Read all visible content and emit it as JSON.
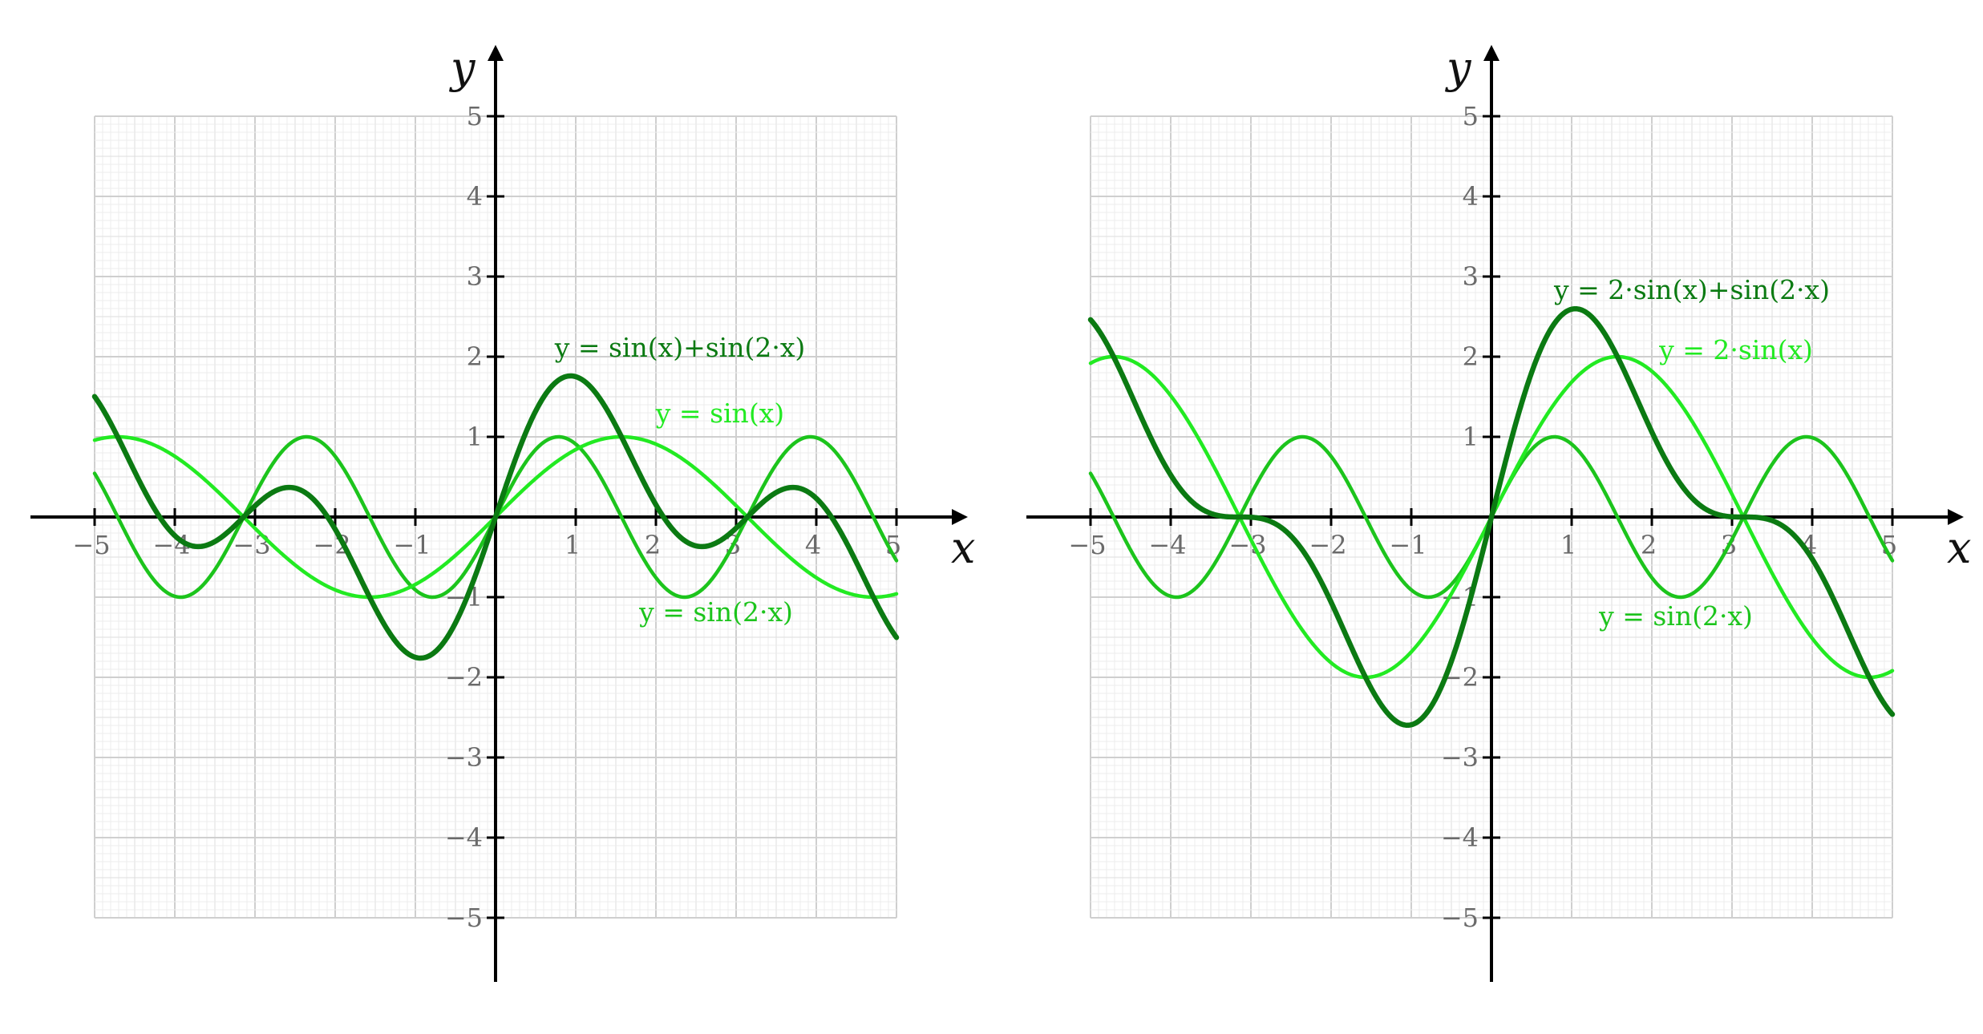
{
  "chart_data": [
    {
      "type": "line",
      "xlabel": "x",
      "ylabel": "y",
      "xlim": [
        -5,
        5
      ],
      "ylim": [
        -5,
        5
      ],
      "grid": true,
      "x_ticks": [
        "−5",
        "−4",
        "−3",
        "−2",
        "−1",
        "1",
        "2",
        "3",
        "4",
        "5"
      ],
      "y_ticks": [
        "5",
        "4",
        "3",
        "2",
        "1",
        "−1",
        "−2",
        "−3",
        "−4",
        "−5"
      ],
      "series": [
        {
          "name": "y = sin(x)+sin(2·x)",
          "a": 1,
          "b": 1,
          "color": "#0b7a12",
          "label_at": [
            2.3,
            2.0
          ]
        },
        {
          "name": "y = sin(x)",
          "a": 1,
          "b": 0,
          "color": "#22ea22",
          "label_at": [
            2.8,
            1.18
          ]
        },
        {
          "name": "y = sin(2·x)",
          "a": 0,
          "b": 1,
          "color": "#1cc41c",
          "label_at": [
            2.75,
            -1.3
          ]
        }
      ]
    },
    {
      "type": "line",
      "xlabel": "x",
      "ylabel": "y",
      "xlim": [
        -5,
        5
      ],
      "ylim": [
        -5,
        5
      ],
      "grid": true,
      "x_ticks": [
        "−5",
        "−4",
        "−3",
        "−2",
        "−1",
        "1",
        "2",
        "3",
        "4",
        "5"
      ],
      "y_ticks": [
        "5",
        "4",
        "3",
        "2",
        "1",
        "−1",
        "−2",
        "−3",
        "−4",
        "−5"
      ],
      "series": [
        {
          "name": "y = 2·sin(x)+sin(2·x)",
          "a": 2,
          "b": 1,
          "color": "#0b7a12",
          "label_at": [
            2.5,
            2.72
          ]
        },
        {
          "name": "y = 2·sin(x)",
          "a": 2,
          "b": 0,
          "color": "#22ea22",
          "label_at": [
            3.05,
            1.97
          ]
        },
        {
          "name": "y = sin(2·x)",
          "a": 0,
          "b": 1,
          "color": "#1cc41c",
          "label_at": [
            2.3,
            -1.35
          ]
        }
      ]
    }
  ]
}
